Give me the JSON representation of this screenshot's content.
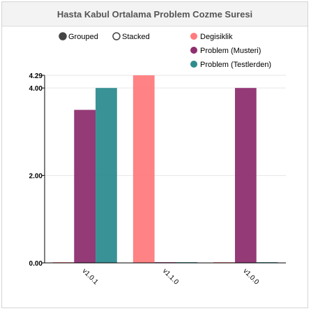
{
  "title": "Hasta Kabul Ortalama Problem Cozme Suresi",
  "controls": {
    "grouped_label": "Grouped",
    "stacked_label": "Stacked",
    "selected": "grouped"
  },
  "chart_data": {
    "type": "bar",
    "categories": [
      "v1.0.1",
      "v1.1.0",
      "v1.0.0"
    ],
    "series": [
      {
        "name": "Degisiklik",
        "color": "#ff7b7d",
        "values": [
          0,
          4.29,
          0
        ]
      },
      {
        "name": "Problem (Musteri)",
        "color": "#8e2f70",
        "values": [
          3.5,
          0,
          4.0
        ]
      },
      {
        "name": "Problem (Testlerden)",
        "color": "#2e8c8f",
        "values": [
          4.0,
          0,
          0
        ]
      }
    ],
    "yticks": [
      {
        "value": 0,
        "label": "0.00"
      },
      {
        "value": 2,
        "label": "2.00"
      },
      {
        "value": 4,
        "label": "4.00"
      },
      {
        "value": 4.29,
        "label": "4.29"
      }
    ],
    "ylim": [
      0,
      4.29
    ],
    "legend_position": "top-right"
  }
}
